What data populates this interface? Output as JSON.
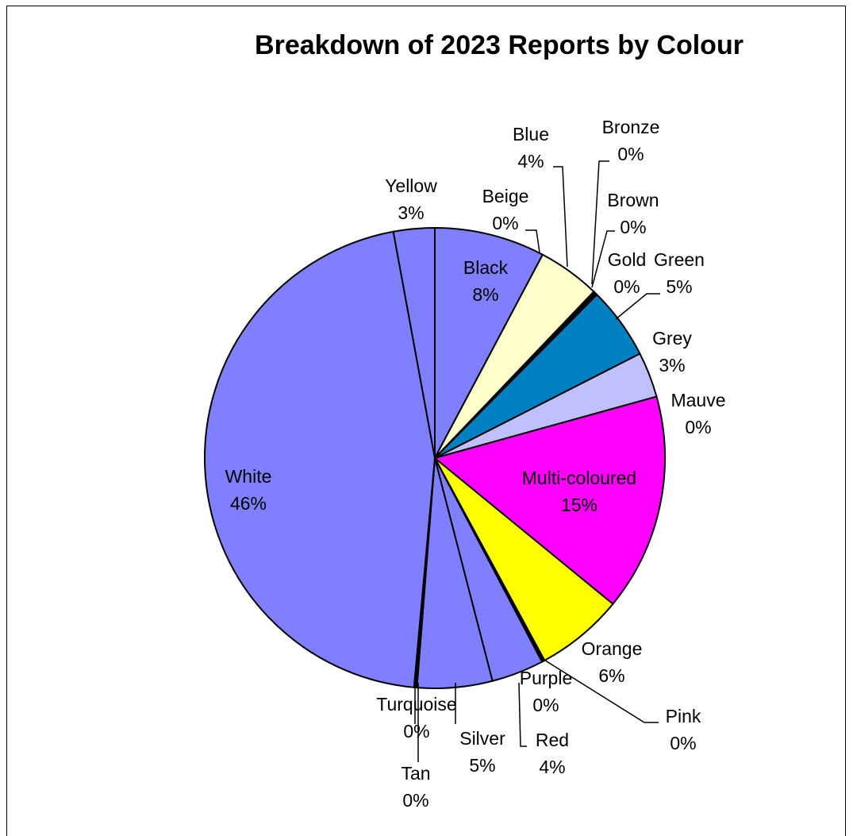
{
  "chart_data": {
    "type": "pie",
    "title": "Breakdown of 2023 Reports by Colour",
    "slices": [
      {
        "label": "Black",
        "pct_label": "8%",
        "value": 7.8,
        "color": "#8080ff"
      },
      {
        "label": "Beige",
        "pct_label": "0%",
        "value": 0.0,
        "color": "#8080ff"
      },
      {
        "label": "Blue",
        "pct_label": "4%",
        "value": 4.4,
        "color": "#ffffcc"
      },
      {
        "label": "Bronze",
        "pct_label": "0%",
        "value": 0.1,
        "color": "#8080ff"
      },
      {
        "label": "Brown",
        "pct_label": "0%",
        "value": 0.1,
        "color": "#8080ff"
      },
      {
        "label": "Gold",
        "pct_label": "0%",
        "value": 0.1,
        "color": "#8080ff"
      },
      {
        "label": "Green",
        "pct_label": "5%",
        "value": 5.1,
        "color": "#0080c0"
      },
      {
        "label": "Grey",
        "pct_label": "3%",
        "value": 3.2,
        "color": "#c0c0ff"
      },
      {
        "label": "Mauve",
        "pct_label": "0%",
        "value": 0.0,
        "color": "#8080ff"
      },
      {
        "label": "Multi-coloured",
        "pct_label": "15%",
        "value": 15.3,
        "color": "#ff00ff"
      },
      {
        "label": "Orange",
        "pct_label": "6%",
        "value": 6.2,
        "color": "#ffff00"
      },
      {
        "label": "Pink",
        "pct_label": "0%",
        "value": 0.1,
        "color": "#8080ff"
      },
      {
        "label": "Purple",
        "pct_label": "0%",
        "value": 0.1,
        "color": "#8080ff"
      },
      {
        "label": "Red",
        "pct_label": "4%",
        "value": 3.7,
        "color": "#8080ff"
      },
      {
        "label": "Silver",
        "pct_label": "5%",
        "value": 5.3,
        "color": "#8080ff"
      },
      {
        "label": "Tan",
        "pct_label": "0%",
        "value": 0.1,
        "color": "#8080ff"
      },
      {
        "label": "Turquoise",
        "pct_label": "0%",
        "value": 0.1,
        "color": "#8080ff"
      },
      {
        "label": "White",
        "pct_label": "46%",
        "value": 45.9,
        "color": "#8080ff"
      },
      {
        "label": "Yellow",
        "pct_label": "3%",
        "value": 2.9,
        "color": "#8080ff"
      }
    ]
  }
}
